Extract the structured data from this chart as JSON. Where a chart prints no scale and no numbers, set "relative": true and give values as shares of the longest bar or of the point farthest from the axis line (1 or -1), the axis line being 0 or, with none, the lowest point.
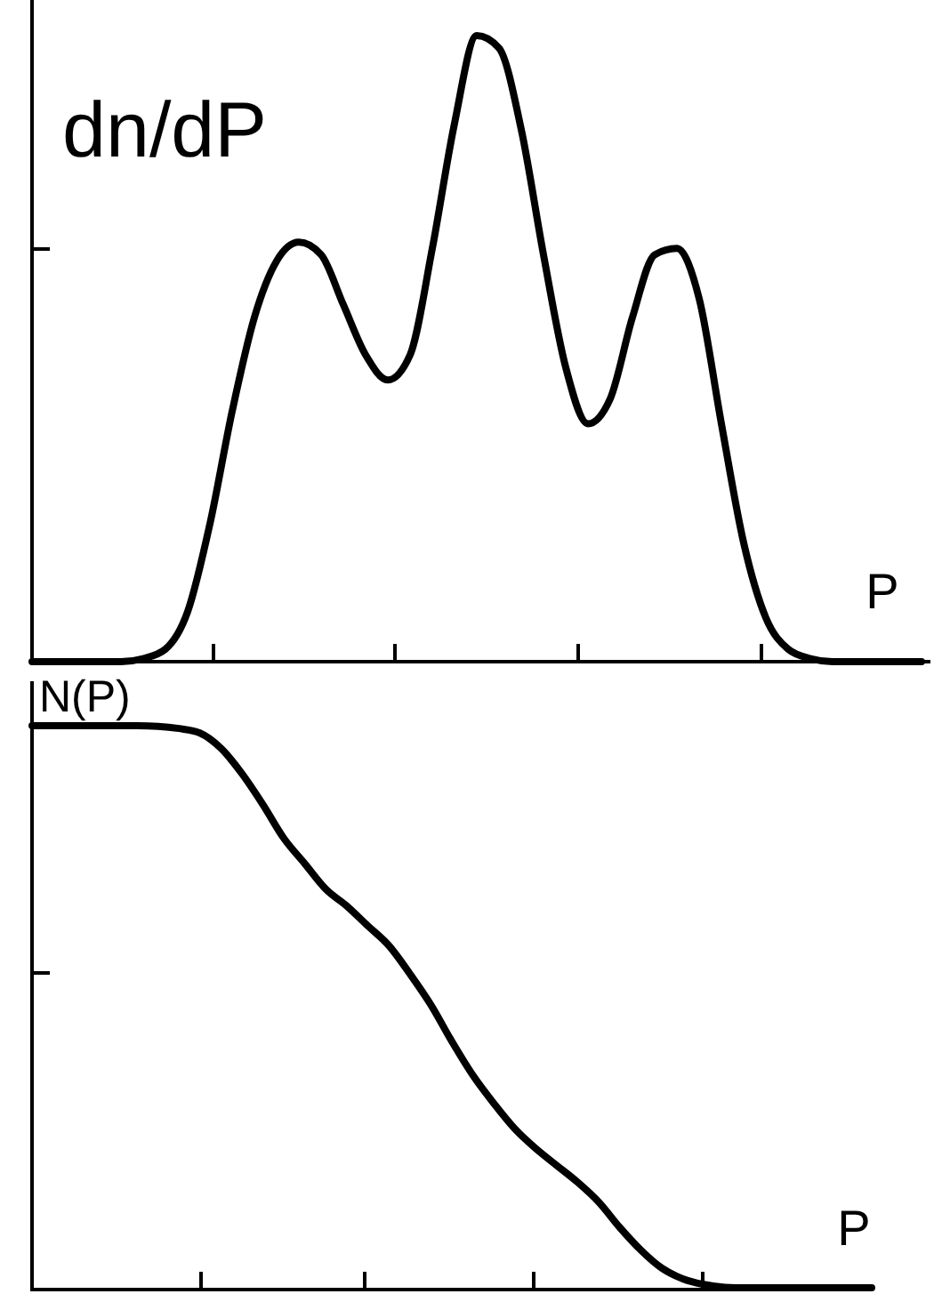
{
  "chart_data": [
    {
      "type": "line",
      "relative": true,
      "ylabel": "dn/dP",
      "xlabel": "P",
      "color": "#000000",
      "categories": [
        null,
        null,
        null,
        null,
        null,
        null,
        null,
        null,
        null,
        null,
        null,
        null,
        null,
        null,
        null,
        null,
        null,
        null,
        null,
        null,
        null,
        null,
        null,
        null,
        null,
        null,
        null,
        null,
        null,
        null,
        null,
        null,
        null,
        null,
        null,
        null,
        null,
        null,
        null,
        null,
        null
      ],
      "values": [
        0,
        0,
        0,
        0,
        0,
        0.005,
        0.02,
        0.08,
        0.22,
        0.4,
        0.55,
        0.64,
        0.67,
        0.65,
        0.57,
        0.49,
        0.45,
        0.49,
        0.66,
        0.86,
        1,
        0.98,
        0.85,
        0.65,
        0.47,
        0.38,
        0.42,
        0.55,
        0.65,
        0.66,
        0.58,
        0.38,
        0.19,
        0.07,
        0.02,
        0.005,
        0,
        0,
        0,
        0,
        0
      ]
    },
    {
      "type": "line",
      "relative": true,
      "ylabel": "N(P)",
      "xlabel": "P",
      "color": "#000000",
      "categories": [
        null,
        null,
        null,
        null,
        null,
        null,
        null,
        null,
        null,
        null,
        null,
        null,
        null,
        null,
        null,
        null,
        null,
        null,
        null,
        null,
        null,
        null,
        null,
        null,
        null,
        null,
        null,
        null,
        null,
        null,
        null,
        null,
        null,
        null,
        null,
        null,
        null,
        null,
        null,
        null,
        null
      ],
      "values": [
        1,
        1,
        1,
        1,
        1,
        1,
        0.999,
        0.995,
        0.987,
        0.96,
        0.915,
        0.86,
        0.8,
        0.755,
        0.71,
        0.68,
        0.645,
        0.61,
        0.56,
        0.505,
        0.44,
        0.38,
        0.33,
        0.285,
        0.25,
        0.22,
        0.19,
        0.155,
        0.11,
        0.07,
        0.038,
        0.019,
        0.009,
        0.004,
        0.003,
        0.003,
        0.003,
        0.003,
        0.003,
        0.003,
        0.003
      ]
    }
  ]
}
